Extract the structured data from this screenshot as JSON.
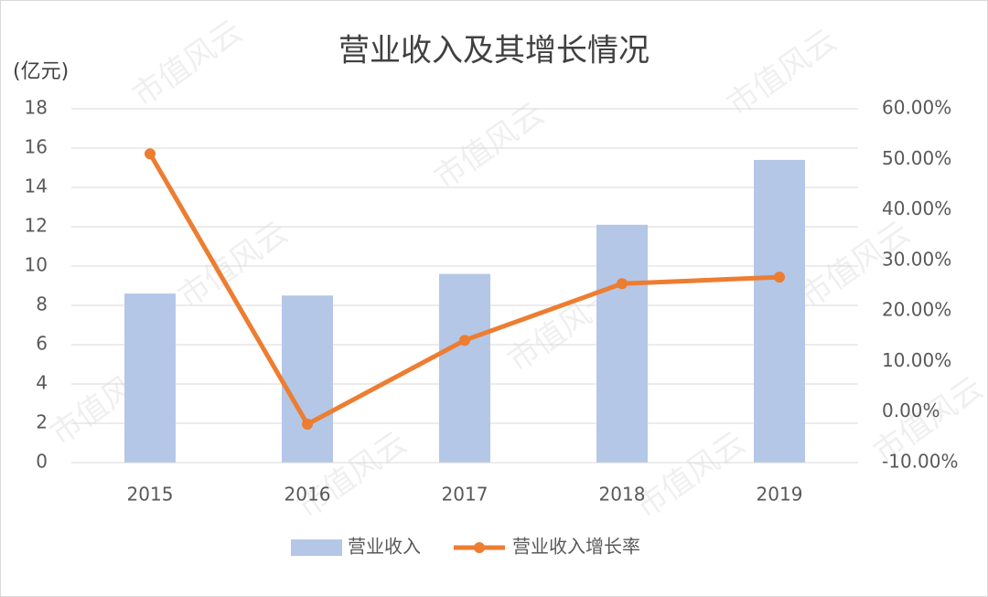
{
  "chart_data": {
    "type": "bar",
    "title": "营业收入及其增长情况",
    "y_axis_label": "(亿元)",
    "watermark": "市值风云",
    "categories": [
      "2015",
      "2016",
      "2017",
      "2018",
      "2019"
    ],
    "series": [
      {
        "name": "营业收入",
        "type": "bar",
        "color": "#b4c7e7",
        "values": [
          8.6,
          8.5,
          9.6,
          12.1,
          15.4
        ]
      },
      {
        "name": "营业收入增长率",
        "type": "line",
        "axis": "y2",
        "color": "#ed7d31",
        "values": [
          51.1,
          -2.4,
          14.2,
          25.4,
          26.7
        ]
      }
    ],
    "ylim": [
      0,
      18
    ],
    "yticks": [
      0,
      2,
      4,
      6,
      8,
      10,
      12,
      14,
      16,
      18
    ],
    "y2lim": [
      -10,
      60
    ],
    "y2ticks": [
      {
        "value": -10,
        "label": "-10.00%"
      },
      {
        "value": 0,
        "label": "0.00%"
      },
      {
        "value": 10,
        "label": "10.00%"
      },
      {
        "value": 20,
        "label": "20.00%"
      },
      {
        "value": 30,
        "label": "30.00%"
      },
      {
        "value": 40,
        "label": "40.00%"
      },
      {
        "value": 50,
        "label": "50.00%"
      },
      {
        "value": 60,
        "label": "60.00%"
      }
    ],
    "grid": true,
    "legend": "bottom"
  }
}
